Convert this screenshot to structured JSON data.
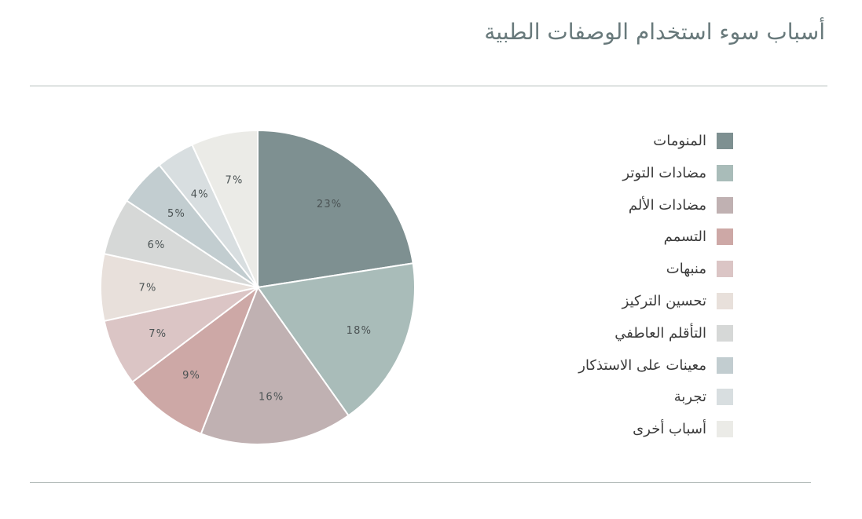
{
  "title": "أسباب سوء استخدام الوصفات الطبية",
  "chart_data": {
    "type": "pie",
    "title": "أسباب سوء استخدام الوصفات الطبية",
    "categories": [
      "المنومات",
      "مضادات التوتر",
      "مضادات الألم",
      "التسمم",
      "منبهات",
      "تحسين التركيز",
      "التأقلم العاطفي",
      "معينات على الاستذكار",
      "تجربة",
      "أسباب أخرى"
    ],
    "values": [
      23,
      18,
      16,
      9,
      7,
      7,
      6,
      5,
      4,
      7
    ],
    "slice_labels": [
      "23%",
      "18%",
      "16%",
      "9%",
      "7%",
      "7%",
      "6%",
      "5%",
      "4%",
      "7%"
    ],
    "unit": "%",
    "colors": [
      "#7E9091",
      "#A9BCB9",
      "#C0B1B2",
      "#CDA8A6",
      "#DBC5C5",
      "#E8E0DB",
      "#D6D8D7",
      "#C2CDD0",
      "#D8DEE0",
      "#EBEBE7"
    ],
    "start_angle_deg": 0,
    "direction": "clockwise",
    "slice_stroke_color": "#ffffff",
    "slice_label_color": "#4b5354",
    "legend_position": "right",
    "legend_text_color": "#3b3b3b",
    "title_color": "#68797b",
    "divider_color": "#b5bdbb"
  }
}
